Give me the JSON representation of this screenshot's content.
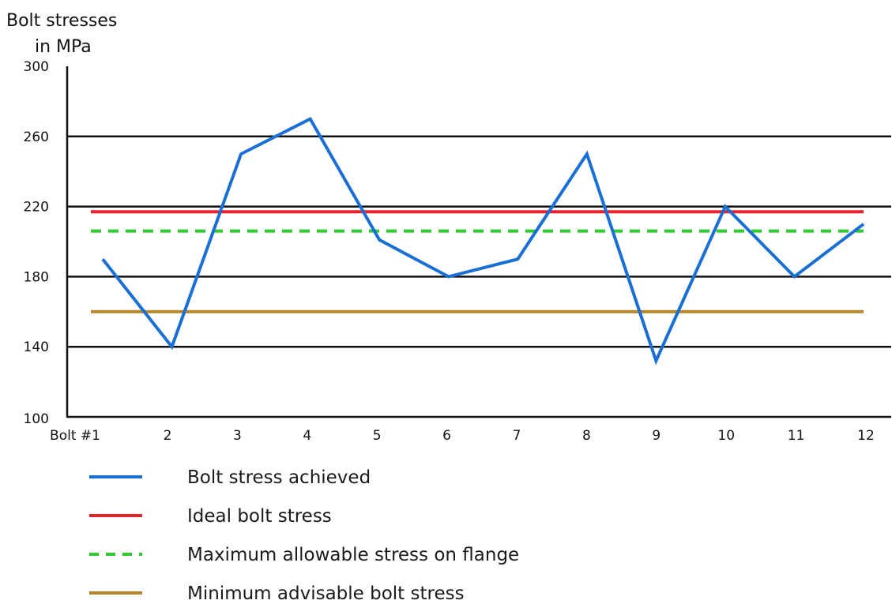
{
  "chart_data": {
    "type": "line",
    "ylabel_lines": [
      "Bolt stresses",
      "in MPa"
    ],
    "ylim": [
      100,
      300
    ],
    "y_ticks": [
      100,
      140,
      180,
      220,
      260,
      300
    ],
    "grid": "horizontal",
    "categories": [
      "Bolt #1",
      "2",
      "3",
      "4",
      "5",
      "6",
      "7",
      "8",
      "9",
      "10",
      "11",
      "12"
    ],
    "series": [
      {
        "name": "Bolt stress achieved",
        "color": "#1a6fd4",
        "style": "solid",
        "values": [
          190,
          140,
          250,
          270,
          201,
          180,
          190,
          250,
          132,
          220,
          180,
          210
        ]
      },
      {
        "name": "Ideal bolt stress",
        "color": "#e8222a",
        "style": "solid",
        "constant": 217
      },
      {
        "name": "Maximum allowable stress on flange",
        "color": "#2ecc2e",
        "style": "dashed",
        "constant": 206
      },
      {
        "name": "Minimum advisable bolt stress",
        "color": "#b8862a",
        "style": "solid",
        "constant": 160
      }
    ],
    "legend_position": "bottom-left"
  }
}
